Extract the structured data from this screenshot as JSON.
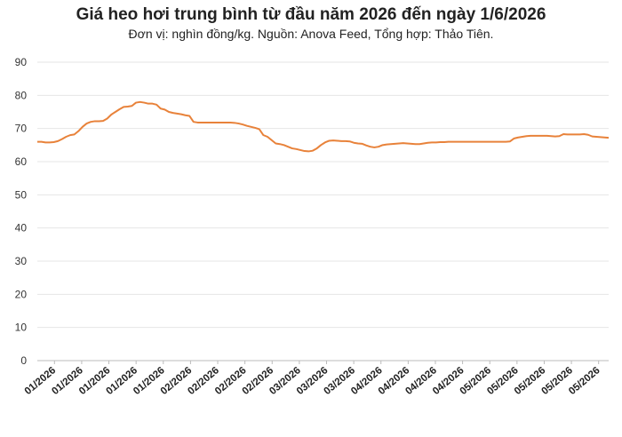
{
  "chart_data": {
    "type": "line",
    "title": "Giá heo hơi trung bình từ đầu năm 2026 đến ngày 1/6/2026",
    "subtitle": "Đơn vị: nghìn đồng/kg. Nguồn: Anova Feed, Tổng hợp: Thảo Tiên.",
    "xlabel": "",
    "ylabel": "",
    "ylim": [
      0,
      90
    ],
    "yticks": [
      0,
      10,
      20,
      30,
      40,
      50,
      60,
      70,
      80,
      90
    ],
    "grid": true,
    "legend": "none",
    "x_tick_labels": [
      "01/2026",
      "01/2026",
      "01/2026",
      "01/2026",
      "01/2026",
      "02/2026",
      "02/2026",
      "02/2026",
      "02/2026",
      "03/2026",
      "03/2026",
      "03/2026",
      "04/2026",
      "04/2026",
      "04/2026",
      "04/2026",
      "05/2026",
      "05/2026",
      "05/2026",
      "05/2026",
      "05/2026"
    ],
    "line_color": "#e8823a",
    "series": [
      {
        "values": [
          66,
          66,
          65.8,
          65.8,
          65.9,
          66.2,
          66.8,
          67.5,
          68,
          68.2,
          69.2,
          70.5,
          71.5,
          72,
          72.2,
          72.2,
          72.3,
          73,
          74.2,
          75,
          75.8,
          76.5,
          76.6,
          76.8,
          77.8,
          78,
          77.8,
          77.5,
          77.5,
          77.2,
          76,
          75.7,
          75,
          74.7,
          74.5,
          74.3,
          74,
          73.8,
          72,
          71.8,
          71.8,
          71.8,
          71.8,
          71.8,
          71.8,
          71.8,
          71.8,
          71.8,
          71.7,
          71.5,
          71.2,
          70.8,
          70.5,
          70.2,
          69.8,
          68,
          67.5,
          66.5,
          65.5,
          65.3,
          65,
          64.5,
          64,
          63.8,
          63.5,
          63.2,
          63.1,
          63.3,
          64,
          65,
          65.8,
          66.3,
          66.4,
          66.3,
          66.2,
          66.2,
          66.1,
          65.7,
          65.5,
          65.4,
          64.9,
          64.5,
          64.3,
          64.5,
          65,
          65.2,
          65.3,
          65.4,
          65.5,
          65.6,
          65.5,
          65.4,
          65.3,
          65.3,
          65.5,
          65.7,
          65.8,
          65.8,
          65.9,
          65.9,
          66,
          66,
          66,
          66,
          66,
          66,
          66,
          66,
          66,
          66,
          66,
          66,
          66,
          66,
          66,
          66.1,
          67,
          67.3,
          67.5,
          67.7,
          67.8,
          67.8,
          67.8,
          67.8,
          67.8,
          67.7,
          67.6,
          67.7,
          68.3,
          68.2,
          68.2,
          68.2,
          68.2,
          68.3,
          68.1,
          67.6,
          67.5,
          67.4,
          67.3,
          67.2
        ]
      }
    ]
  }
}
